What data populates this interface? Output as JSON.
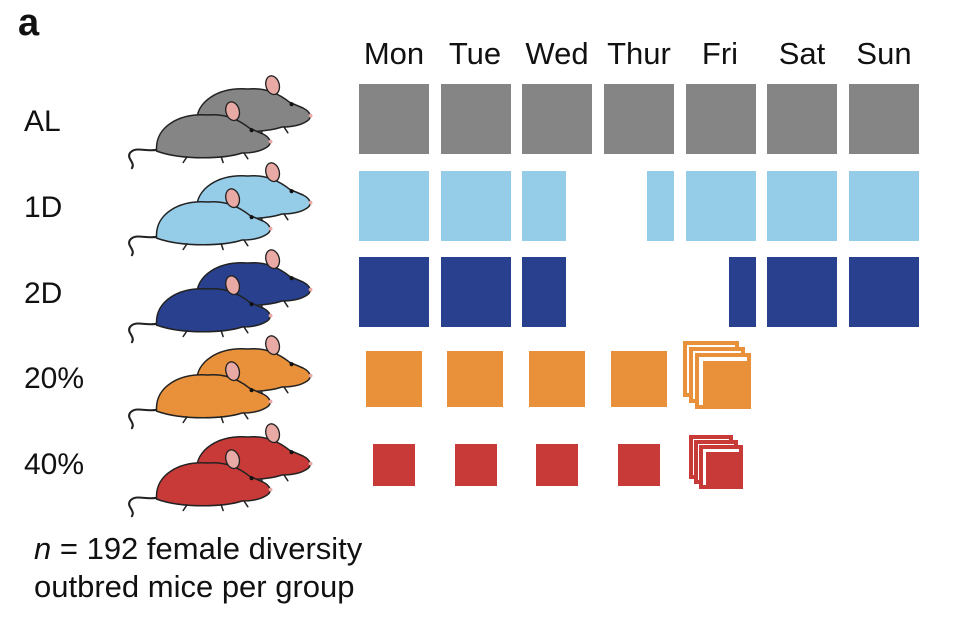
{
  "panel_label": "a",
  "days": [
    "Mon",
    "Tue",
    "Wed",
    "Thur",
    "Fri",
    "Sat",
    "Sun"
  ],
  "groups": [
    {
      "label": "AL",
      "color": "#858585"
    },
    {
      "label": "1D",
      "color": "#95cde9"
    },
    {
      "label": "2D",
      "color": "#28408e"
    },
    {
      "label": "20%",
      "color": "#e8913a"
    },
    {
      "label": "40%",
      "color": "#c83a38"
    }
  ],
  "caption": {
    "n_symbol": "n",
    "line1_rest": " = 192 female diversity",
    "line2": "outbred mice per group"
  },
  "icons": {
    "mouse": "mouse-icon",
    "stacked_squares": "stacked-squares-icon"
  },
  "colors": {
    "mouse_ear": "#e9a9a4",
    "tail": "#222222",
    "outline": "#222222",
    "background": "#ffffff"
  }
}
